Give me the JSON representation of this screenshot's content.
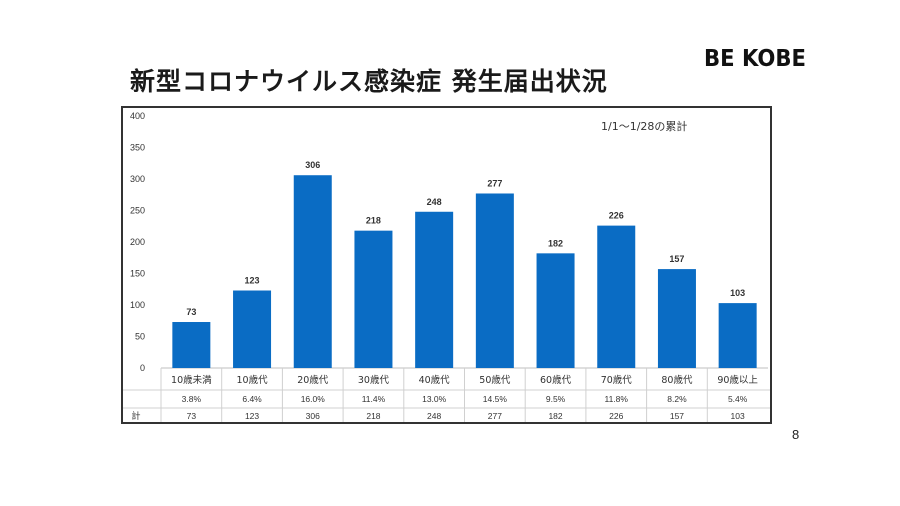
{
  "slide": {
    "title": "新型コロナウイルス感染症 発生届出状況",
    "brand": "BE KOBE",
    "page_number": "8"
  },
  "colors": {
    "bar": "#0a6cc4",
    "grid": "#e6e6e6",
    "text": "#333333"
  },
  "chart_data": {
    "type": "bar",
    "categories": [
      "10歳未満",
      "10歳代",
      "20歳代",
      "30歳代",
      "40歳代",
      "50歳代",
      "60歳代",
      "70歳代",
      "80歳代",
      "90歳以上"
    ],
    "values": [
      73,
      123,
      306,
      218,
      248,
      277,
      182,
      226,
      157,
      103
    ],
    "data_labels": [
      "73",
      "123",
      "306",
      "218",
      "248",
      "277",
      "182",
      "226",
      "157",
      "103"
    ],
    "annotation": "1/1～1/28の累計",
    "ylim": [
      0,
      400
    ],
    "yticks": [
      0,
      50,
      100,
      150,
      200,
      250,
      300,
      350,
      400
    ],
    "grid": false,
    "legend": "none",
    "table": {
      "percent_row": [
        "3.8%",
        "6.4%",
        "16.0%",
        "11.4%",
        "13.0%",
        "14.5%",
        "9.5%",
        "11.8%",
        "8.2%",
        "5.4%"
      ],
      "total_label": "計",
      "total_row": [
        "73",
        "123",
        "306",
        "218",
        "248",
        "277",
        "182",
        "226",
        "157",
        "103"
      ]
    }
  }
}
